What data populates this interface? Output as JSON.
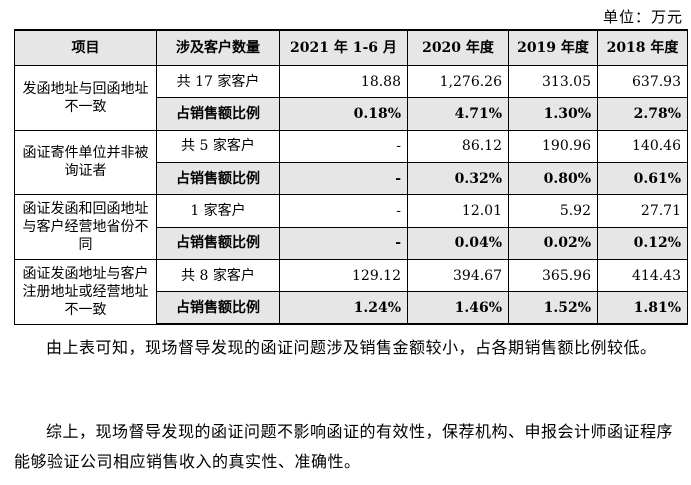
{
  "unit_label": "单位：万元",
  "table": {
    "headers": [
      "项目",
      "涉及客户数量",
      "2021 年 1-6 月",
      "2020 年度",
      "2019 年度",
      "2018 年度"
    ],
    "groups": [
      {
        "item": "发函地址与回函地址不一致",
        "rows": [
          {
            "label": "共 17 家客户",
            "values": [
              "18.88",
              "1,276.26",
              "313.05",
              "637.93"
            ]
          },
          {
            "label": "占销售额比例",
            "values": [
              "0.18%",
              "4.71%",
              "1.30%",
              "2.78%"
            ]
          }
        ]
      },
      {
        "item": "函证寄件单位并非被询证者",
        "rows": [
          {
            "label": "共 5 家客户",
            "values": [
              "-",
              "86.12",
              "190.96",
              "140.46"
            ]
          },
          {
            "label": "占销售额比例",
            "values": [
              "-",
              "0.32%",
              "0.80%",
              "0.61%"
            ]
          }
        ]
      },
      {
        "item": "函证发函和回函地址与客户经营地省份不同",
        "rows": [
          {
            "label": "1 家客户",
            "values": [
              "-",
              "12.01",
              "5.92",
              "27.71"
            ]
          },
          {
            "label": "占销售额比例",
            "values": [
              "-",
              "0.04%",
              "0.02%",
              "0.12%"
            ]
          }
        ]
      },
      {
        "item": "函证发函地址与客户注册地址或经营地址不一致",
        "rows": [
          {
            "label": "共 8 家客户",
            "values": [
              "129.12",
              "394.67",
              "365.96",
              "414.43"
            ]
          },
          {
            "label": "占销售额比例",
            "values": [
              "1.24%",
              "1.46%",
              "1.52%",
              "1.81%"
            ]
          }
        ]
      }
    ]
  },
  "paragraphs": [
    "由上表可知，现场督导发现的函证问题涉及销售金额较小，占各期销售额比例较低。",
    "综上，现场督导发现的函证问题不影响函证的有效性，保荐机构、申报会计师函证程序能够验证公司相应销售收入的真实性、准确性。"
  ]
}
